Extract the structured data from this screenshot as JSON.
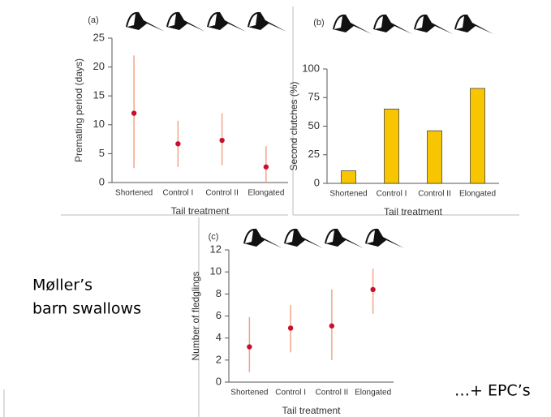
{
  "chart_data": [
    {
      "type": "errorbar",
      "panel_label": "(a)",
      "x_label": "Tail treatment",
      "y_label": "Premating period (days)",
      "categories": [
        "Shortened",
        "Control I",
        "Control II",
        "Elongated"
      ],
      "values": [
        12,
        6.7,
        7.3,
        2.7
      ],
      "low": [
        2.5,
        2.7,
        3,
        0
      ],
      "high": [
        22,
        10.7,
        12,
        6.3
      ],
      "color": "#c8102e",
      "bar_color": "#f2a58a",
      "ylim": [
        0,
        25
      ],
      "yticks": [
        0,
        5,
        10,
        15,
        20,
        25
      ]
    },
    {
      "type": "bar",
      "panel_label": "(b)",
      "x_label": "Tail treatment",
      "y_label": "Second clutches (%)",
      "categories": [
        "Shortened",
        "Control I",
        "Control II",
        "Elongated"
      ],
      "values": [
        11,
        65,
        46,
        83
      ],
      "color": "#f7c600",
      "ylim": [
        0,
        100
      ],
      "yticks": [
        0,
        25,
        50,
        75,
        100
      ]
    },
    {
      "type": "errorbar",
      "panel_label": "(c)",
      "x_label": "Tail treatment",
      "y_label": "Number of fledglings",
      "categories": [
        "Shortened",
        "Control I",
        "Control II",
        "Elongated"
      ],
      "values": [
        3.2,
        4.9,
        5.1,
        8.4
      ],
      "low": [
        0.9,
        2.7,
        2,
        6.2
      ],
      "high": [
        5.9,
        7,
        8.4,
        10.3
      ],
      "color": "#c8102e",
      "bar_color": "#f2a58a",
      "ylim": [
        0,
        12
      ],
      "yticks": [
        0,
        2,
        4,
        6,
        8,
        10,
        12
      ]
    }
  ],
  "slide": {
    "caption_line1": "Møller’s",
    "caption_line2": "barn swallows",
    "note": "…+ EPC’s"
  }
}
